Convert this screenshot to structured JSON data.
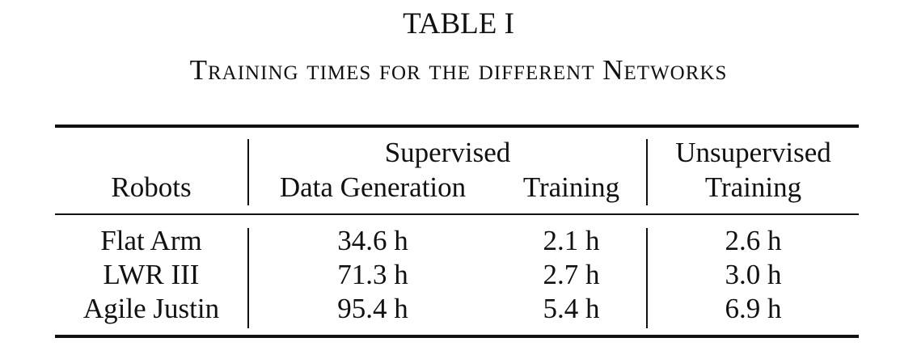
{
  "table_label": "TABLE I",
  "caption": "Training times for the different Networks",
  "header": {
    "robots": "Robots",
    "supervised_group": "Supervised",
    "data_generation": "Data Generation",
    "training": "Training",
    "unsupervised_group": "Unsupervised",
    "unsupervised_training": "Training"
  },
  "rows": [
    {
      "robot": "Flat Arm",
      "data_generation": "34.6 h",
      "supervised_training": "2.1 h",
      "unsupervised_training": "2.6 h"
    },
    {
      "robot": "LWR III",
      "data_generation": "71.3 h",
      "supervised_training": "2.7 h",
      "unsupervised_training": "3.0 h"
    },
    {
      "robot": "Agile Justin",
      "data_generation": "95.4 h",
      "supervised_training": "5.4 h",
      "unsupervised_training": "6.9 h"
    }
  ]
}
